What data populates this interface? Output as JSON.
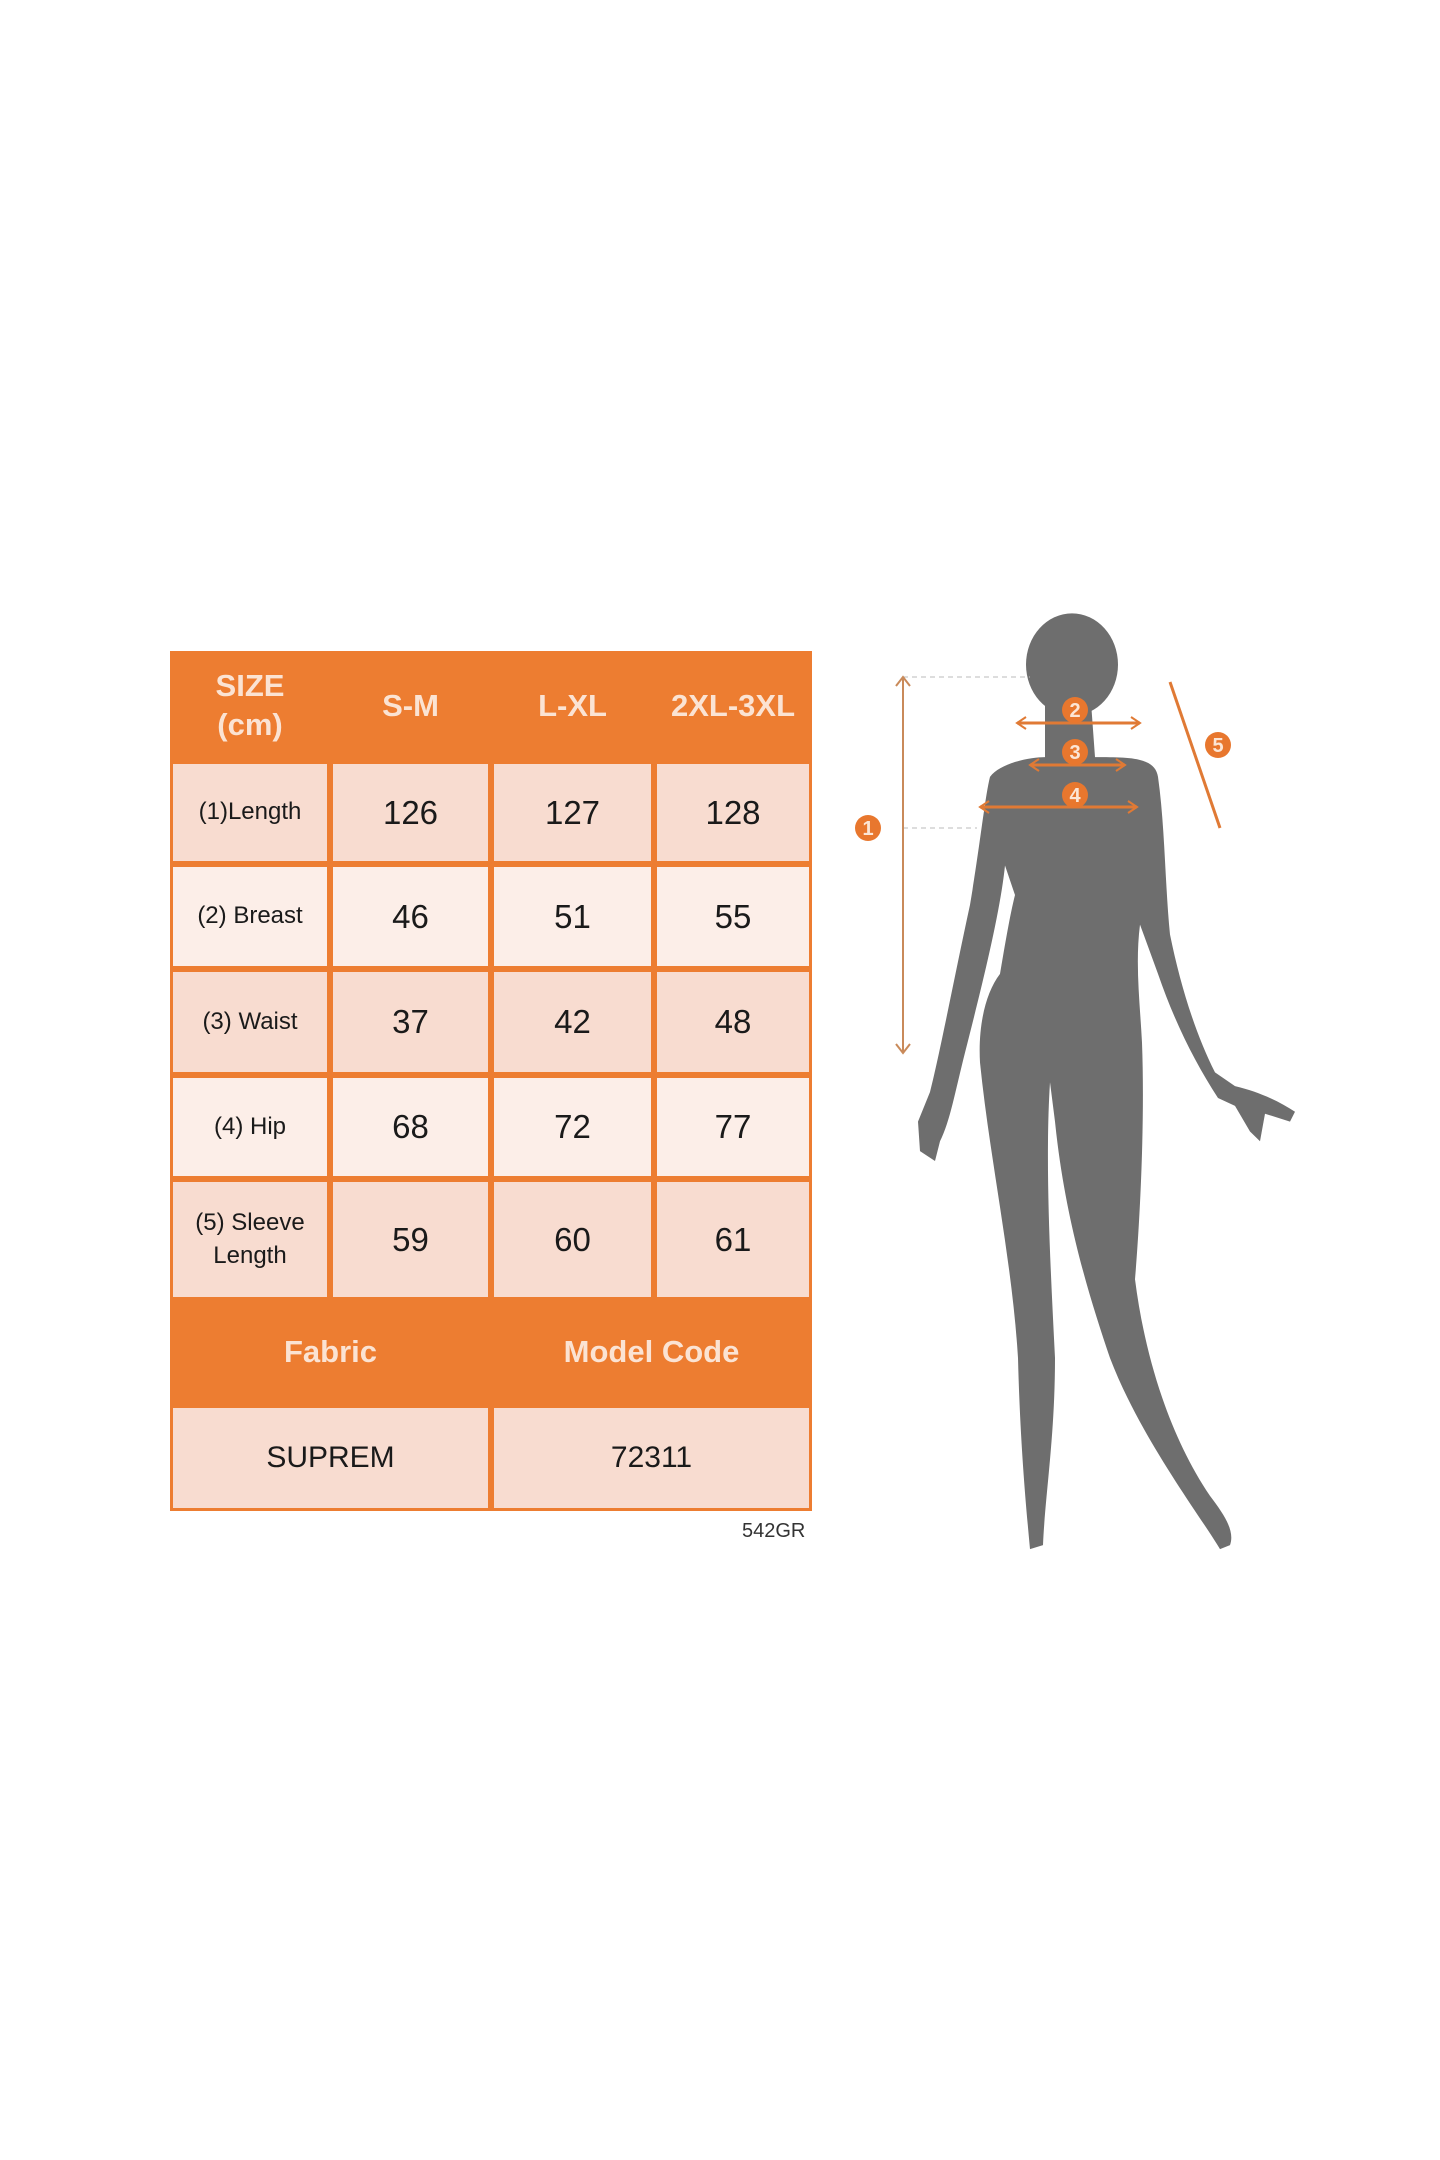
{
  "size_table": {
    "header": [
      "SIZE\n(cm)",
      "S-M",
      "L-XL",
      "2XL-3XL"
    ],
    "rows": [
      {
        "label": "(1)Length",
        "values": [
          "126",
          "127",
          "128"
        ]
      },
      {
        "label": "(2) Breast",
        "values": [
          "46",
          "51",
          "55"
        ]
      },
      {
        "label": "(3) Waist",
        "values": [
          "37",
          "42",
          "48"
        ]
      },
      {
        "label": "(4) Hip",
        "values": [
          "68",
          "72",
          "77"
        ]
      },
      {
        "label": "(5) Sleeve\nLength",
        "values": [
          "59",
          "60",
          "61"
        ]
      }
    ],
    "footer_headers": [
      "Fabric",
      "Model Code"
    ],
    "footer_values": [
      "SUPREM",
      "72311"
    ]
  },
  "code_note": "542GR",
  "figure": {
    "badges": [
      "1",
      "2",
      "3",
      "4",
      "5"
    ]
  },
  "colors": {
    "accent": "#ED7D31",
    "cell_dark": "#F8DCD0",
    "cell_light": "#FCEEE8",
    "silhouette": "#6E6E6E"
  }
}
